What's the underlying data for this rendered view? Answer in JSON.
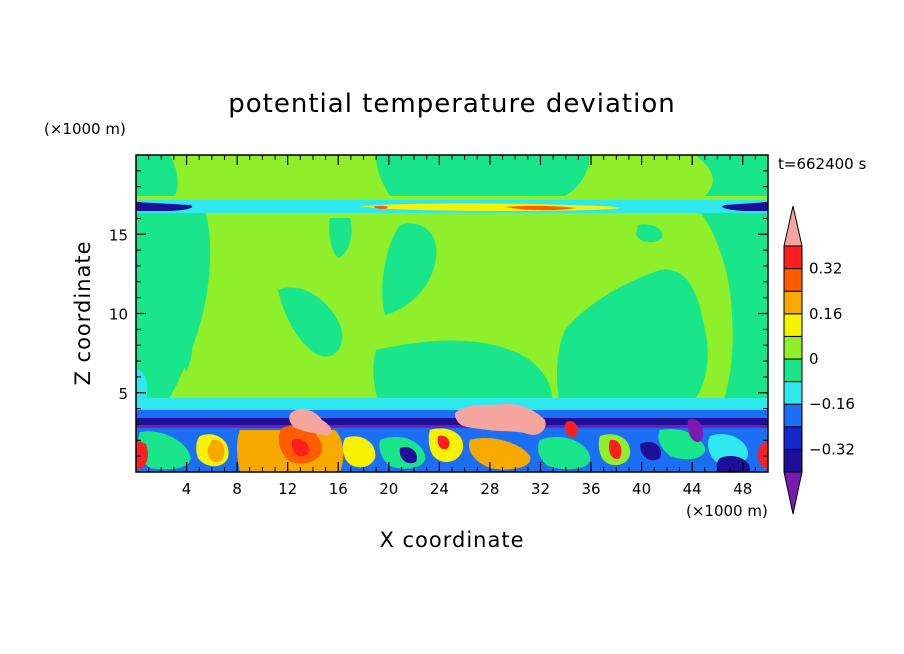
{
  "chart_data": {
    "type": "heatmap",
    "title": "potential temperature deviation",
    "xlabel": "X coordinate",
    "ylabel": "Z coordinate",
    "x_unit": "(×1000 m)",
    "y_unit": "(×1000 m)",
    "time_label": "t=662400 s",
    "xlim": [
      0,
      50
    ],
    "ylim": [
      0,
      20
    ],
    "x_ticks": [
      "4",
      "8",
      "12",
      "16",
      "20",
      "24",
      "28",
      "32",
      "36",
      "40",
      "44",
      "48"
    ],
    "y_ticks": [
      "5",
      "10",
      "15"
    ],
    "colorbar": {
      "levels": [
        -0.4,
        -0.32,
        -0.24,
        -0.16,
        -0.08,
        0,
        0.08,
        0.16,
        0.24,
        0.32,
        0.4
      ],
      "tick_labels": [
        "0.32",
        "0.16",
        "0",
        "−0.16",
        "−0.32"
      ],
      "colors_low_to_high": [
        "#7a1ab0",
        "#1e0f99",
        "#1428cc",
        "#1c6ff5",
        "#2ee8ee",
        "#19e58a",
        "#8fef2a",
        "#f6f200",
        "#f7a900",
        "#ff5c00",
        "#ff1e1e",
        "#f5a5a0"
      ]
    }
  }
}
